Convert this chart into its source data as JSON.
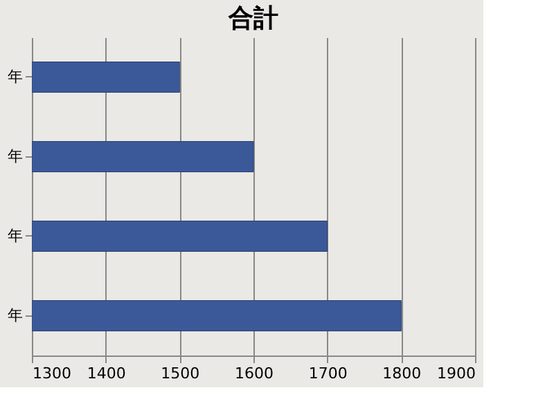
{
  "chart_data": {
    "type": "bar",
    "orientation": "horizontal",
    "title": "合計",
    "categories": [
      "年",
      "年",
      "年",
      "年"
    ],
    "series": [
      {
        "color": "#3b5998",
        "values": [
          1500,
          1600,
          1700,
          1800
        ]
      }
    ],
    "xlim": [
      1300,
      1900
    ],
    "xticks": [
      1300,
      1400,
      1500,
      1600,
      1700,
      1800,
      1900
    ],
    "grid": "x"
  }
}
